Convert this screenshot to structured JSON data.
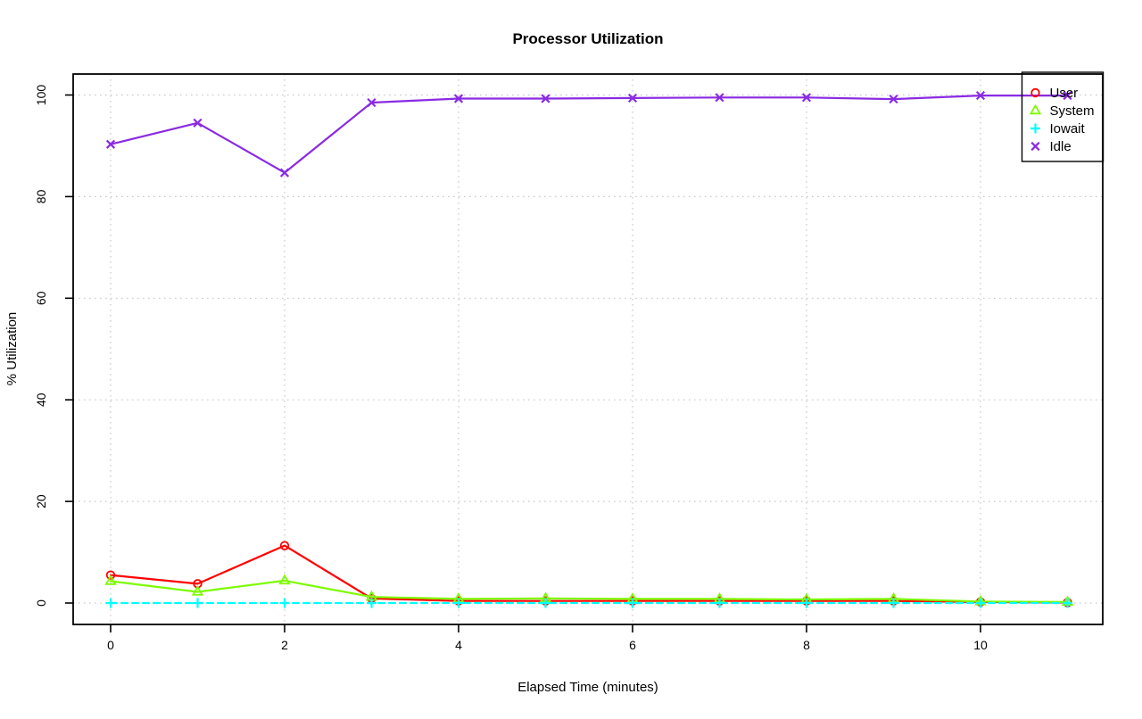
{
  "page": {
    "background": "#FFFFFF"
  },
  "chart_data": {
    "type": "line",
    "title": "Processor Utilization",
    "xlabel": "Elapsed Time (minutes)",
    "ylabel": "% Utilization",
    "x": [
      0,
      1,
      2,
      3,
      4,
      5,
      6,
      7,
      8,
      9,
      10,
      11
    ],
    "xtick_values": [
      0,
      2,
      4,
      6,
      8,
      10
    ],
    "xtick_labels": [
      "0",
      "2",
      "4",
      "6",
      "8",
      "10"
    ],
    "ytick_values": [
      0,
      20,
      40,
      60,
      80,
      100
    ],
    "ytick_labels": [
      "0",
      "20",
      "40",
      "60",
      "80",
      "100"
    ],
    "xlim": [
      -0.44,
      11.44
    ],
    "ylim": [
      -4.2,
      104.2
    ],
    "grid": true,
    "grid_color": "#C9C9C9",
    "axis_color": "#000000",
    "legend_position": "topright",
    "series": [
      {
        "name": "User",
        "color": "#FF0000",
        "marker": "circle",
        "line_style": "solid",
        "values": [
          5.5,
          3.8,
          11.3,
          0.9,
          0.4,
          0.4,
          0.4,
          0.4,
          0.4,
          0.4,
          0.2,
          0.1
        ]
      },
      {
        "name": "System",
        "color": "#7CFC00",
        "marker": "triangle",
        "line_style": "solid",
        "values": [
          4.3,
          2.2,
          4.4,
          1.2,
          0.8,
          0.9,
          0.8,
          0.8,
          0.7,
          0.8,
          0.3,
          0.2
        ]
      },
      {
        "name": "Iowait",
        "color": "#00FFFF",
        "marker": "plus",
        "line_style": "dashed",
        "values": [
          0,
          0,
          0,
          0,
          0,
          0,
          0,
          0,
          0,
          0,
          0,
          0
        ]
      },
      {
        "name": "Idle",
        "color": "#8A2BE2",
        "marker": "x",
        "line_style": "solid",
        "values": [
          90.3,
          94.5,
          84.7,
          98.5,
          99.3,
          99.3,
          99.4,
          99.5,
          99.5,
          99.2,
          99.9,
          99.9
        ]
      }
    ]
  }
}
